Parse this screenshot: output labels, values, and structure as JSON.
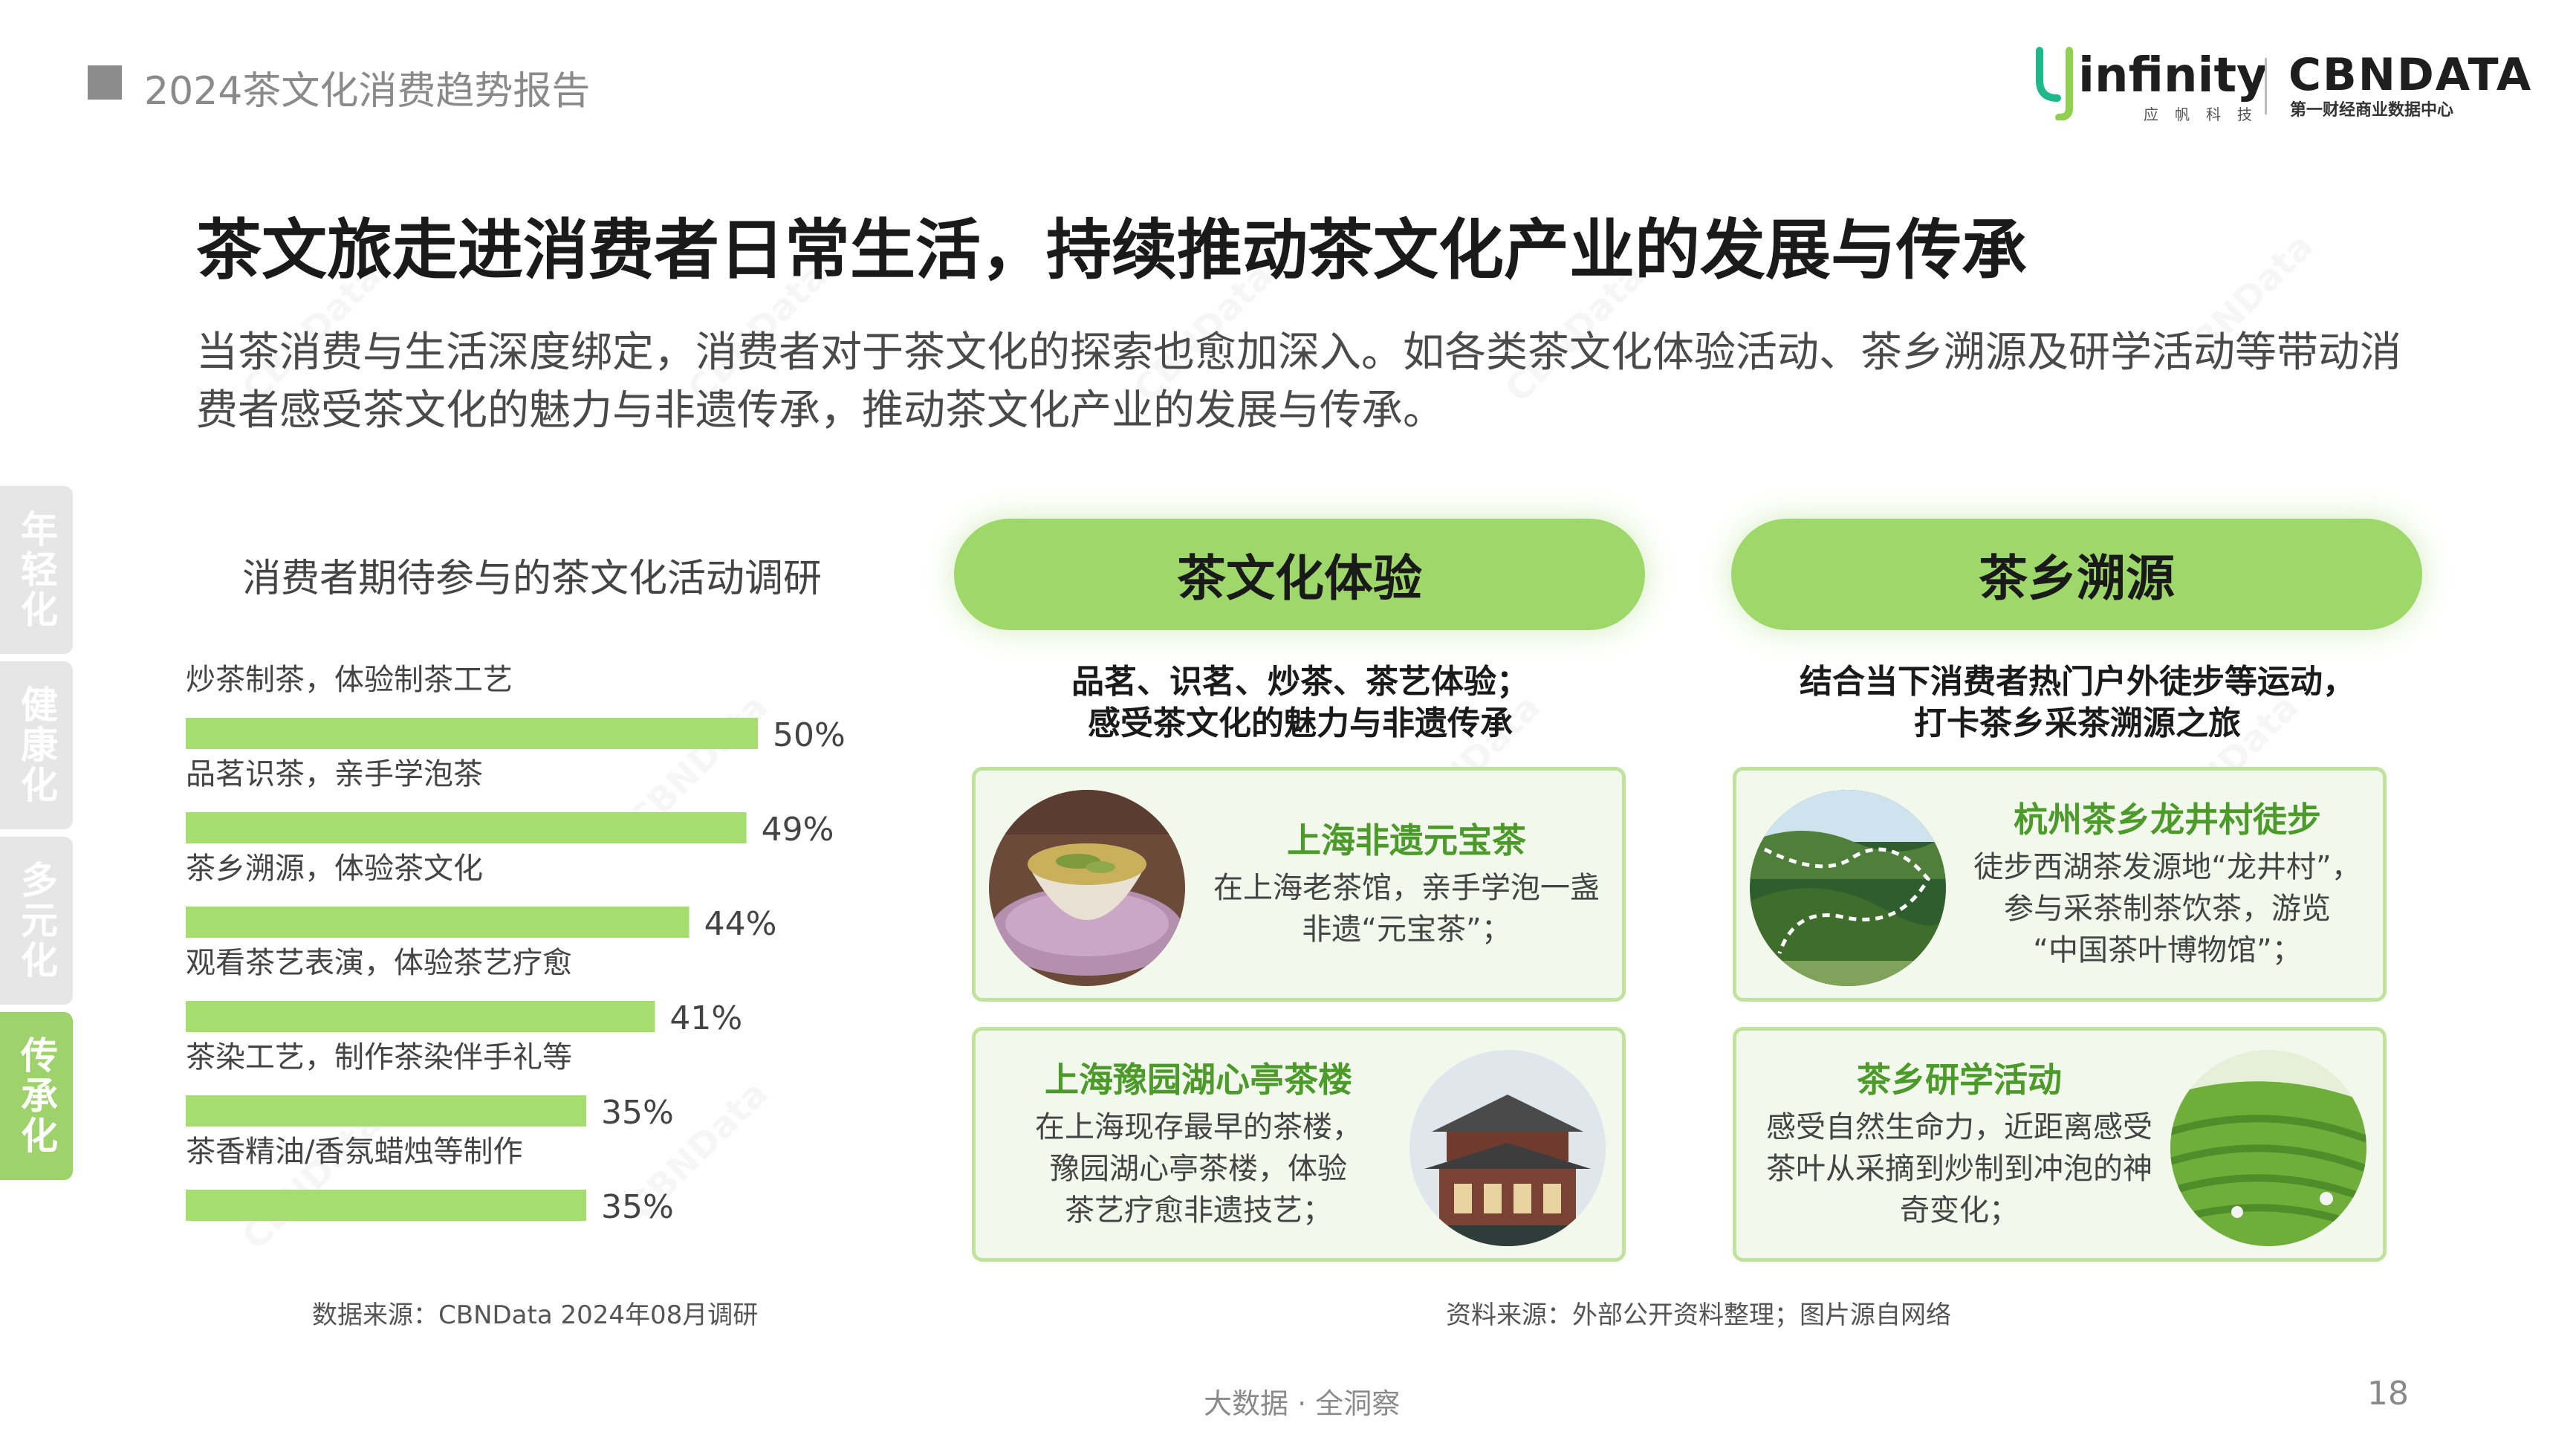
{
  "header": {
    "report_title": "2024茶文化消费趋势报告"
  },
  "logos": {
    "infinity_word": "infinity",
    "infinity_sub": "应帆科技",
    "cbn_word": "CBNDATA",
    "cbn_sub": "第一财经商业数据中心"
  },
  "title": "茶文旅走进消费者日常生活，持续推动茶文化产业的发展与传承",
  "intro": "当茶消费与生活深度绑定，消费者对于茶文化的探索也愈加深入。如各类茶文化体验活动、茶乡溯源及研学活动等带动消费者感受茶文化的魅力与非遗传承，推动茶文化产业的发展与传承。",
  "side_tabs": [
    {
      "label": "年轻化",
      "active": false
    },
    {
      "label": "健康化",
      "active": false
    },
    {
      "label": "多元化",
      "active": false
    },
    {
      "label": "传承化",
      "active": true
    }
  ],
  "chart_data": {
    "type": "bar",
    "orientation": "horizontal",
    "title": "消费者期待参与的茶文化活动调研",
    "categories": [
      "炒茶制茶，体验制茶工艺",
      "品茗识茶，亲手学泡茶",
      "茶乡溯源，体验茶文化",
      "观看茶艺表演，体验茶艺疗愈",
      "茶染工艺，制作茶染伴手礼等",
      "茶香精油/香氛蜡烛等制作"
    ],
    "values": [
      50,
      49,
      44,
      41,
      35,
      35
    ],
    "value_labels": [
      "50%",
      "49%",
      "44%",
      "41%",
      "35%",
      "35%"
    ],
    "unit": "%",
    "xlim": [
      0,
      100
    ],
    "bar_color": "#a5dd6e",
    "grid": false,
    "legend": "none"
  },
  "source_left": "数据来源：CBNData 2024年08月调研",
  "source_right": "资料来源：外部公开资料整理；图片源自网络",
  "columns": {
    "left": {
      "pill": "茶文化体验",
      "desc": [
        "品茗、识茗、炒茶、茶艺体验；",
        "感受茶文化的魅力与非遗传承"
      ],
      "cards": [
        {
          "title": "上海非遗元宝茶",
          "body": [
            "在上海老茶馆，亲手学泡一盏",
            "非遗“元宝茶”；"
          ]
        },
        {
          "title": "上海豫园湖心亭茶楼",
          "body": [
            "在上海现存最早的茶楼，",
            "豫园湖心亭茶楼，体验",
            "茶艺疗愈非遗技艺；"
          ]
        }
      ]
    },
    "right": {
      "pill": "茶乡溯源",
      "desc": [
        "结合当下消费者热门户外徒步等运动，",
        "打卡茶乡采茶溯源之旅"
      ],
      "cards": [
        {
          "title": "杭州茶乡龙井村徒步",
          "body": [
            "徒步西湖茶发源地“龙井村”，",
            "参与采茶制茶饮茶，游览",
            "“中国茶叶博物馆”；"
          ]
        },
        {
          "title": "茶乡研学活动",
          "body": [
            "感受自然生命力，近距离感受",
            "茶叶从采摘到炒制到冲泡的神",
            "奇变化；"
          ]
        }
      ]
    }
  },
  "footer": {
    "tagline": "大数据 · 全洞察",
    "page": "18"
  },
  "colors": {
    "accent_green": "#9fd86a",
    "card_title_green": "#4c9a2a",
    "card_border": "#bfe39c"
  }
}
